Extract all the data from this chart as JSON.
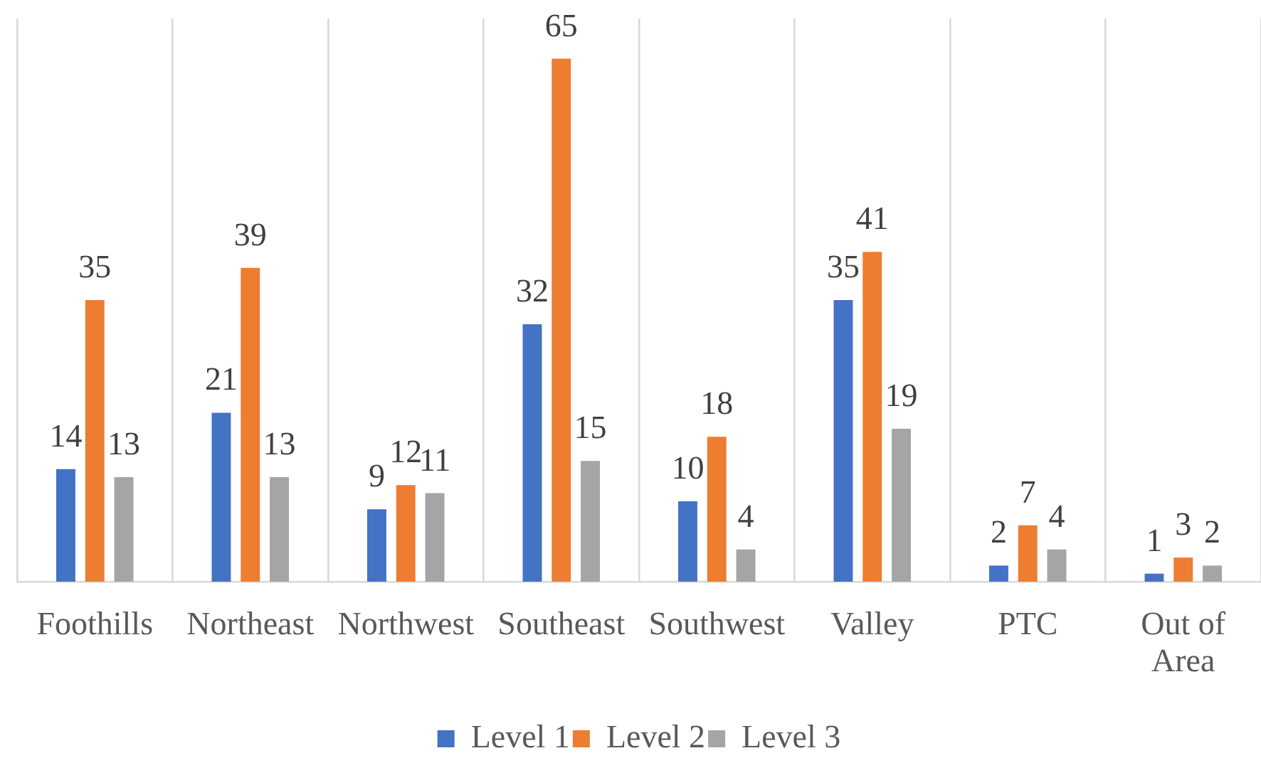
{
  "chart_data": {
    "type": "bar",
    "categories": [
      "Foothills",
      "Northeast",
      "Northwest",
      "Southeast",
      "Southwest",
      "Valley",
      "PTC",
      "Out of Area"
    ],
    "series": [
      {
        "name": "Level 1",
        "color": "#4472c4",
        "values": [
          14,
          21,
          9,
          32,
          10,
          35,
          2,
          1
        ]
      },
      {
        "name": "Level 2",
        "color": "#ed7d31",
        "values": [
          35,
          39,
          12,
          65,
          18,
          41,
          7,
          3
        ]
      },
      {
        "name": "Level 3",
        "color": "#a5a5a5",
        "values": [
          13,
          13,
          11,
          15,
          4,
          19,
          4,
          2
        ]
      }
    ],
    "data_labels": true,
    "grid": "x",
    "legend": "bottom"
  }
}
